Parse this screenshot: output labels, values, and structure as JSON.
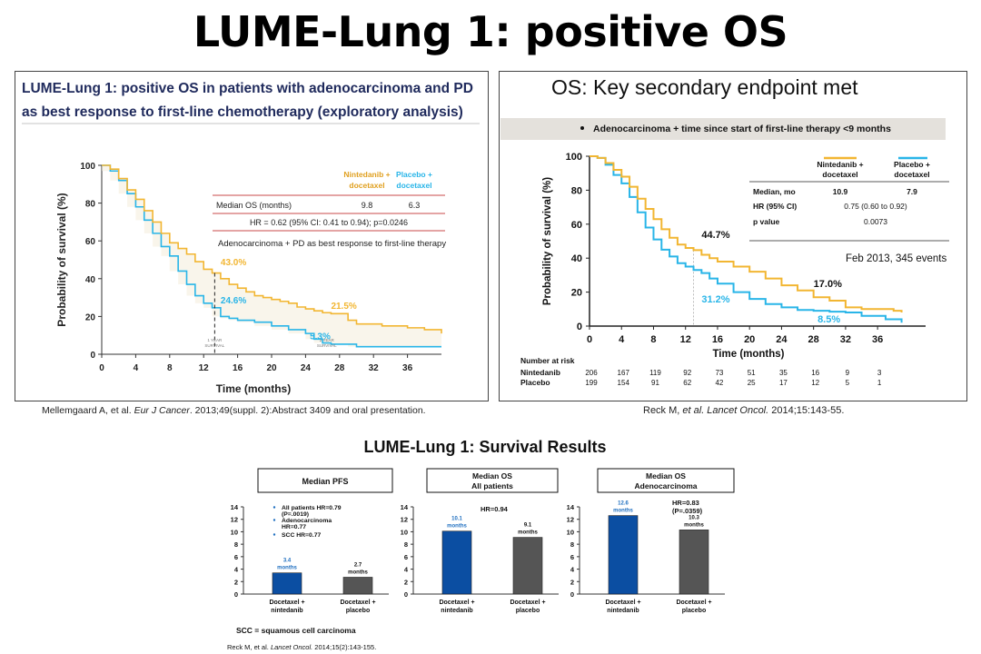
{
  "page": {
    "title": "LUME-Lung 1: positive OS",
    "citation_left_a": "Mellemgaard A, et al. ",
    "citation_left_journal": "Eur J Cancer",
    "citation_left_b": ". 2013;49(suppl. 2):Abstract 3409 and oral presentation.",
    "citation_right_a": "Reck M, ",
    "citation_right_etal": "et al. Lancet Oncol.",
    "citation_right_b": " 2014;15:143-55."
  },
  "colors": {
    "nintedanib": "#f2b632",
    "placebo": "#29b5e8",
    "bar_blue": "#0b4ea2",
    "bar_gray": "#555555",
    "title_navy": "#1f2a5c"
  },
  "chart_data": [
    {
      "type": "line",
      "heading_line1": "LUME-Lung 1: positive OS in patients with adenocarcinoma and PD",
      "heading_line2": "as best response to first-line chemotherapy (exploratory analysis)",
      "xlabel": "Time (months)",
      "ylabel": "Probability of survival (%)",
      "xlim": [
        0,
        40
      ],
      "ylim": [
        0,
        100
      ],
      "xticks": [
        0,
        4,
        8,
        12,
        16,
        20,
        24,
        28,
        32,
        36
      ],
      "yticks": [
        0,
        20,
        40,
        60,
        80,
        100
      ],
      "table": {
        "col1": [
          "Nintedanib +",
          "docetaxel"
        ],
        "col2": [
          "Placebo +",
          "docetaxel"
        ],
        "row_label": "Median OS (months)",
        "v1": "9.8",
        "v2": "6.3",
        "hr": "HR = 0.62 (95% CI: 0.41 to 0.94); p=0.0246",
        "subgroup": "Adenocarcinoma + PD as best response to first-line therapy"
      },
      "annotations": [
        "43.0%",
        "24.6%",
        "21.5%",
        "5.3%"
      ],
      "marker_labels": [
        [
          "1 YEAR",
          "SURVIVAL"
        ],
        [
          "2 YEAR",
          "SURVIVAL"
        ]
      ],
      "series": [
        {
          "name": "Nintedanib + docetaxel",
          "points": [
            [
              0,
              100
            ],
            [
              1,
              98
            ],
            [
              2,
              93
            ],
            [
              3,
              87
            ],
            [
              4,
              82
            ],
            [
              5,
              76
            ],
            [
              6,
              70
            ],
            [
              7,
              64
            ],
            [
              8,
              59
            ],
            [
              9,
              56
            ],
            [
              10,
              53
            ],
            [
              11,
              49
            ],
            [
              12,
              45
            ],
            [
              13,
              43
            ],
            [
              14,
              40
            ],
            [
              15,
              37
            ],
            [
              16,
              35
            ],
            [
              17,
              33
            ],
            [
              18,
              31
            ],
            [
              19,
              30
            ],
            [
              20,
              29
            ],
            [
              21,
              28
            ],
            [
              22,
              27
            ],
            [
              23,
              25
            ],
            [
              24,
              24
            ],
            [
              25,
              23
            ],
            [
              26,
              22
            ],
            [
              27,
              21.5
            ],
            [
              28,
              21.5
            ],
            [
              29,
              18
            ],
            [
              30,
              16
            ],
            [
              33,
              15
            ],
            [
              36,
              14
            ],
            [
              38,
              13
            ],
            [
              40,
              11
            ]
          ]
        },
        {
          "name": "Placebo + docetaxel",
          "points": [
            [
              0,
              100
            ],
            [
              1,
              97
            ],
            [
              2,
              92
            ],
            [
              3,
              85
            ],
            [
              4,
              78
            ],
            [
              5,
              71
            ],
            [
              6,
              64
            ],
            [
              7,
              57
            ],
            [
              8,
              52
            ],
            [
              9,
              44
            ],
            [
              10,
              37
            ],
            [
              11,
              31
            ],
            [
              12,
              27
            ],
            [
              13,
              24.6
            ],
            [
              14,
              20
            ],
            [
              15,
              19
            ],
            [
              16,
              18
            ],
            [
              18,
              17
            ],
            [
              20,
              15
            ],
            [
              22,
              13
            ],
            [
              24,
              11
            ],
            [
              25,
              8
            ],
            [
              26,
              6
            ],
            [
              27,
              5.3
            ],
            [
              29,
              5.3
            ],
            [
              30,
              4
            ],
            [
              40,
              4
            ]
          ]
        }
      ]
    },
    {
      "type": "line",
      "heading": "OS: Key secondary endpoint met",
      "subtitle": "Adenocarcinoma + time since start of first-line therapy <9 months",
      "xlabel": "Time (months)",
      "ylabel": "Probability of survival (%)",
      "xlim": [
        0,
        42
      ],
      "ylim": [
        0,
        100
      ],
      "xticks": [
        0,
        4,
        8,
        12,
        16,
        20,
        24,
        28,
        32,
        36
      ],
      "yticks": [
        0,
        20,
        40,
        60,
        80,
        100
      ],
      "legend": [
        [
          "Nintedanib +",
          "docetaxel"
        ],
        [
          "Placebo +",
          "docetaxel"
        ]
      ],
      "table_rows": [
        [
          "Median, mo",
          "10.9",
          "7.9"
        ],
        [
          "HR (95% CI)",
          "0.75 (0.60 to 0.92)"
        ],
        [
          "p value",
          "0.0073"
        ]
      ],
      "events_note": "Feb 2013, 345 events",
      "annotations": [
        "44.7%",
        "31.2%",
        "17.0%",
        "8.5%"
      ],
      "risk_title": "Number at risk",
      "risk_rows": [
        {
          "label": "Nintedanib",
          "values": [
            "206",
            "167",
            "119",
            "92",
            "73",
            "51",
            "35",
            "16",
            "9",
            "3"
          ]
        },
        {
          "label": "Placebo",
          "values": [
            "199",
            "154",
            "91",
            "62",
            "42",
            "25",
            "17",
            "12",
            "5",
            "1"
          ]
        }
      ],
      "series": [
        {
          "name": "Nintedanib + docetaxel",
          "points": [
            [
              0,
              100
            ],
            [
              1,
              99
            ],
            [
              2,
              96
            ],
            [
              3,
              92
            ],
            [
              4,
              88
            ],
            [
              5,
              82
            ],
            [
              6,
              75
            ],
            [
              7,
              69
            ],
            [
              8,
              63
            ],
            [
              9,
              57
            ],
            [
              10,
              52
            ],
            [
              11,
              48
            ],
            [
              12,
              46
            ],
            [
              13,
              44.7
            ],
            [
              14,
              42
            ],
            [
              15,
              40
            ],
            [
              16,
              38
            ],
            [
              18,
              35
            ],
            [
              20,
              32
            ],
            [
              22,
              28
            ],
            [
              24,
              24
            ],
            [
              26,
              21
            ],
            [
              28,
              17
            ],
            [
              30,
              15
            ],
            [
              32,
              11
            ],
            [
              34,
              10
            ],
            [
              36,
              10
            ],
            [
              38,
              9
            ],
            [
              39,
              8
            ]
          ]
        },
        {
          "name": "Placebo + docetaxel",
          "points": [
            [
              0,
              100
            ],
            [
              1,
              99
            ],
            [
              2,
              95
            ],
            [
              3,
              89
            ],
            [
              4,
              84
            ],
            [
              5,
              76
            ],
            [
              6,
              67
            ],
            [
              7,
              58
            ],
            [
              8,
              51
            ],
            [
              9,
              45
            ],
            [
              10,
              41
            ],
            [
              11,
              37
            ],
            [
              12,
              35
            ],
            [
              13,
              33
            ],
            [
              14,
              31.2
            ],
            [
              15,
              28
            ],
            [
              16,
              25
            ],
            [
              18,
              20
            ],
            [
              20,
              16
            ],
            [
              22,
              13
            ],
            [
              24,
              11
            ],
            [
              26,
              9.5
            ],
            [
              28,
              9
            ],
            [
              30,
              8.5
            ],
            [
              32,
              8
            ],
            [
              34,
              6
            ],
            [
              36,
              6
            ],
            [
              37,
              4
            ],
            [
              39,
              2
            ]
          ]
        }
      ]
    },
    {
      "type": "bar",
      "heading": "LUME-Lung 1: Survival Results",
      "footnote": "SCC = squamous  cell carcinoma",
      "reference_a": "Reck M, et al. ",
      "reference_journal": "Lancet Oncol.",
      "reference_b": " 2014;15(2):143-155.",
      "ylim": [
        0,
        14
      ],
      "yticks": [
        0,
        2,
        4,
        6,
        8,
        10,
        12,
        14
      ],
      "categories": [
        [
          "Docetaxel +",
          "nintedanib"
        ],
        [
          "Docetaxel +",
          "placebo"
        ]
      ],
      "panels": [
        {
          "box_title": [
            "Median PFS"
          ],
          "values": [
            3.4,
            2.7
          ],
          "value_labels": [
            [
              "3.4",
              "months"
            ],
            [
              "2.7",
              "months"
            ]
          ],
          "notes": [
            "All patients HR=0.79",
            "(P=.0019)",
            "Adenocarcinoma",
            "HR=0.77",
            "SCC HR=0.77"
          ]
        },
        {
          "box_title": [
            "Median OS",
            "All patients"
          ],
          "values": [
            10.1,
            9.1
          ],
          "value_labels": [
            [
              "10.1",
              "months"
            ],
            [
              "9.1",
              "months"
            ]
          ],
          "notes": [
            "HR=0.94"
          ]
        },
        {
          "box_title": [
            "Median OS",
            "Adenocarcinoma"
          ],
          "values": [
            12.6,
            10.3
          ],
          "value_labels": [
            [
              "12.6",
              "months"
            ],
            [
              "10.3",
              "months"
            ]
          ],
          "notes": [
            "HR=0.83",
            "(P=.0359)"
          ]
        }
      ]
    }
  ]
}
